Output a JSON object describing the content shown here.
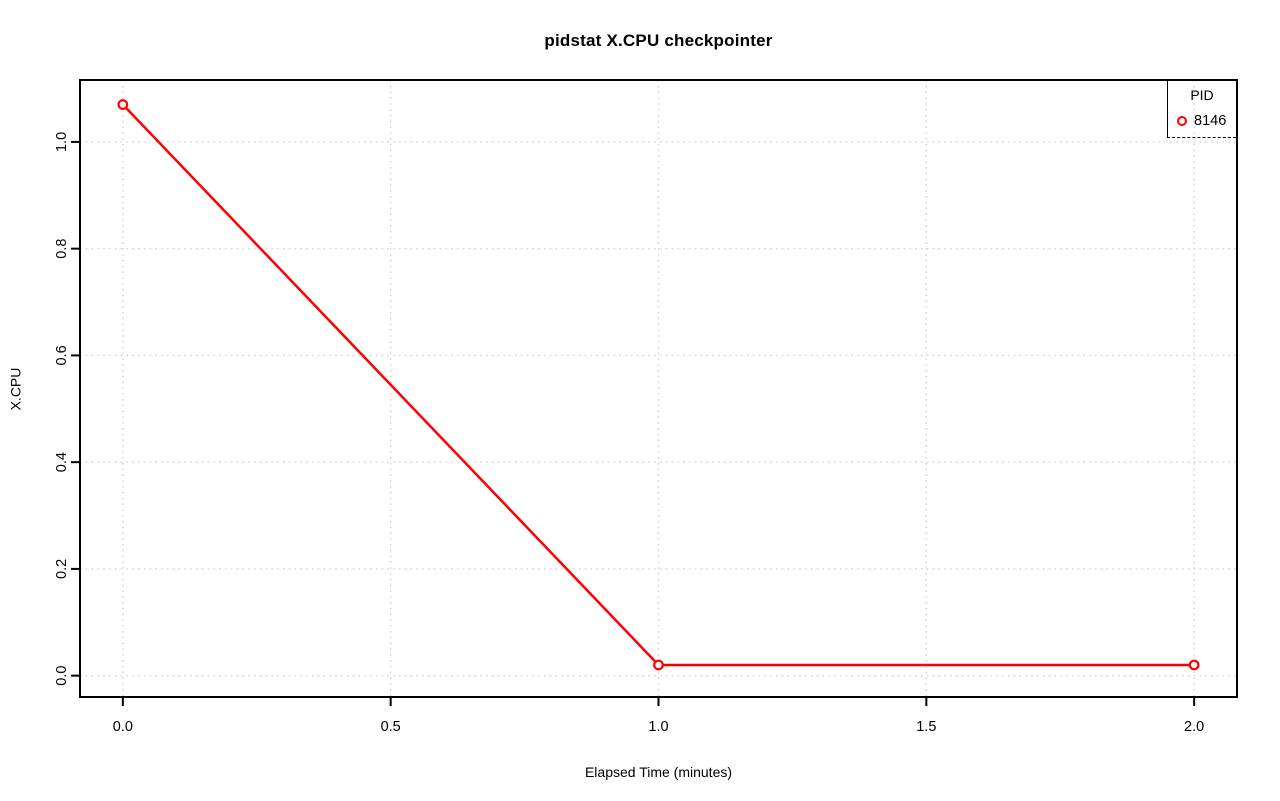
{
  "title": "pidstat X.CPU checkpointer",
  "xlabel": "Elapsed Time (minutes)",
  "ylabel": "X.CPU",
  "legend": {
    "title": "PID",
    "entries": [
      {
        "label": "8146",
        "marker": "open-circle",
        "color": "#FF0000"
      }
    ]
  },
  "colors": {
    "series": "#FF0000",
    "grid": "#D3D3D3",
    "axis": "#000000",
    "background": "#FFFFFF"
  },
  "chart_data": {
    "type": "line",
    "title": "pidstat X.CPU checkpointer",
    "xlabel": "Elapsed Time (minutes)",
    "ylabel": "X.CPU",
    "series": [
      {
        "name": "8146",
        "color": "#FF0000",
        "marker": "open-circle",
        "x": [
          0.0,
          1.0,
          2.0
        ],
        "y": [
          1.07,
          0.02,
          0.02
        ]
      }
    ],
    "xticks": [
      0.0,
      0.5,
      1.0,
      1.5,
      2.0
    ],
    "xtick_labels": [
      "0.0",
      "0.5",
      "1.0",
      "1.5",
      "2.0"
    ],
    "yticks": [
      0.0,
      0.2,
      0.4,
      0.6,
      0.8,
      1.0
    ],
    "ytick_labels": [
      "0.0",
      "0.2",
      "0.4",
      "0.6",
      "0.8",
      "1.0"
    ],
    "xlim": [
      -0.08,
      2.08
    ],
    "ylim": [
      -0.04,
      1.116
    ],
    "grid": true,
    "grid_style": "dotted",
    "grid_color": "#D3D3D3",
    "legend_position": "topright"
  }
}
